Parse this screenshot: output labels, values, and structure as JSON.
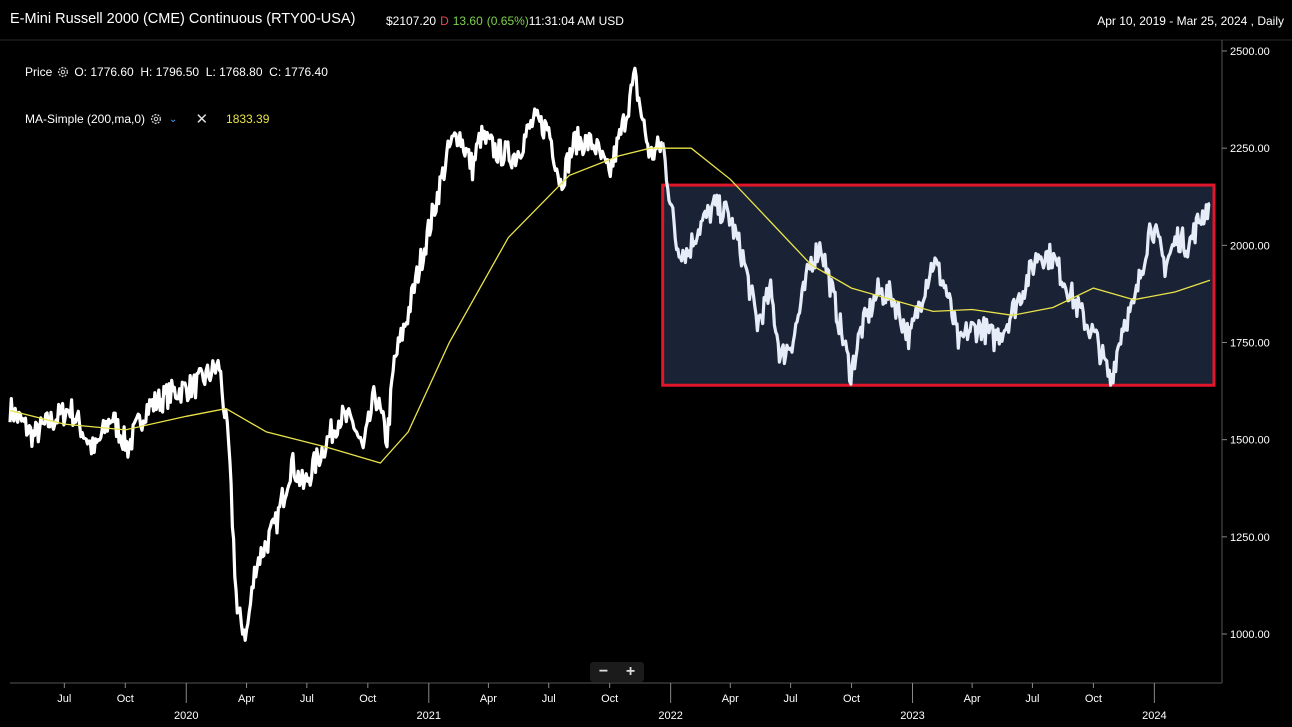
{
  "header": {
    "title": "E-Mini Russell 2000 (CME) Continuous (RTY00-USA)",
    "last": "$2107.20",
    "flag": "D",
    "change": "13.60",
    "change_pct": "(0.65%)",
    "time": "11:31:04 AM USD",
    "range": "Apr 10, 2019 - Mar 25, 2024 , Daily"
  },
  "legend": {
    "price_label": "Price",
    "ohlc": "O: 1776.60  H: 1796.50  L: 1768.80  C: 1776.40",
    "ma_label": "MA-Simple (200,ma,0)",
    "ma_value": "1833.39"
  },
  "zoom": {
    "minus": "−",
    "plus": "+"
  },
  "colors": {
    "price": "#ffffff",
    "price_highlight": "#e6ecf8",
    "ma": "#e9e34a",
    "box_border": "#e0162b",
    "box_fill": "#1a2335"
  },
  "chart_data": {
    "type": "line",
    "y_ticks": [
      "2500.00",
      "2250.00",
      "2000.00",
      "1750.00",
      "1500.00",
      "1250.00",
      "1000.00"
    ],
    "ylim": [
      930,
      2520
    ],
    "x_month_ticks": [
      "Jul",
      "Oct",
      "Apr",
      "Jul",
      "Oct",
      "Apr",
      "Jul",
      "Oct",
      "Apr",
      "Jul",
      "Oct",
      "Apr",
      "Jul",
      "Oct"
    ],
    "x_year_ticks": [
      "2020",
      "2021",
      "2022",
      "2023",
      "2024"
    ],
    "series": [
      {
        "role": "price",
        "x": [
          "2019-04-10",
          "2019-05-15",
          "2019-06-05",
          "2019-07-10",
          "2019-08-15",
          "2019-09-10",
          "2019-10-05",
          "2019-11-01",
          "2019-12-10",
          "2020-01-15",
          "2020-02-20",
          "2020-03-05",
          "2020-03-18",
          "2020-04-01",
          "2020-04-15",
          "2020-05-15",
          "2020-06-08",
          "2020-06-26",
          "2020-07-20",
          "2020-08-20",
          "2020-09-10",
          "2020-09-24",
          "2020-10-12",
          "2020-10-30",
          "2020-11-10",
          "2020-11-30",
          "2020-12-20",
          "2021-01-10",
          "2021-02-01",
          "2021-02-15",
          "2021-03-08",
          "2021-03-20",
          "2021-04-15",
          "2021-05-12",
          "2021-06-08",
          "2021-07-01",
          "2021-07-19",
          "2021-08-10",
          "2021-09-08",
          "2021-09-30",
          "2021-10-20",
          "2021-11-08",
          "2021-11-20",
          "2021-12-01",
          "2021-12-20",
          "2022-01-10",
          "2022-01-27",
          "2022-02-10",
          "2022-03-08",
          "2022-03-29",
          "2022-04-20",
          "2022-05-12",
          "2022-06-01",
          "2022-06-16",
          "2022-07-05",
          "2022-08-01",
          "2022-08-16",
          "2022-09-10",
          "2022-09-30",
          "2022-10-15",
          "2022-11-10",
          "2022-12-01",
          "2022-12-28",
          "2023-01-20",
          "2023-02-02",
          "2023-02-20",
          "2023-03-13",
          "2023-03-25",
          "2023-04-15",
          "2023-05-04",
          "2023-05-20",
          "2023-06-15",
          "2023-07-10",
          "2023-07-31",
          "2023-08-18",
          "2023-09-10",
          "2023-10-05",
          "2023-10-27",
          "2023-11-15",
          "2023-12-01",
          "2023-12-27",
          "2024-01-17",
          "2024-02-05",
          "2024-02-22",
          "2024-03-10",
          "2024-03-25"
        ],
        "values": [
          1580,
          1510,
          1540,
          1580,
          1470,
          1560,
          1480,
          1580,
          1620,
          1640,
          1690,
          1480,
          1050,
          1000,
          1180,
          1280,
          1440,
          1380,
          1460,
          1560,
          1540,
          1470,
          1620,
          1500,
          1700,
          1820,
          1960,
          2100,
          2250,
          2290,
          2200,
          2280,
          2240,
          2230,
          2320,
          2300,
          2160,
          2270,
          2260,
          2180,
          2300,
          2430,
          2320,
          2230,
          2260,
          2000,
          1980,
          2040,
          2100,
          2080,
          1970,
          1800,
          1880,
          1710,
          1760,
          1960,
          2000,
          1820,
          1670,
          1780,
          1880,
          1870,
          1760,
          1900,
          1960,
          1890,
          1740,
          1780,
          1790,
          1760,
          1790,
          1880,
          1980,
          1970,
          1910,
          1830,
          1760,
          1650,
          1800,
          1840,
          2060,
          1950,
          2020,
          2000,
          2070,
          2107
        ]
      },
      {
        "role": "ma",
        "x": [
          "2019-04-10",
          "2019-07-01",
          "2019-10-01",
          "2020-01-01",
          "2020-03-01",
          "2020-05-01",
          "2020-08-01",
          "2020-10-20",
          "2020-12-01",
          "2021-02-01",
          "2021-05-01",
          "2021-08-01",
          "2021-10-15",
          "2021-12-01",
          "2022-02-01",
          "2022-04-01",
          "2022-06-01",
          "2022-08-01",
          "2022-10-01",
          "2022-12-01",
          "2023-02-01",
          "2023-04-01",
          "2023-06-01",
          "2023-08-01",
          "2023-10-01",
          "2023-12-01",
          "2024-02-01",
          "2024-03-25"
        ],
        "values": [
          1575,
          1540,
          1525,
          1560,
          1580,
          1520,
          1480,
          1440,
          1520,
          1750,
          2020,
          2180,
          2230,
          2250,
          2250,
          2170,
          2060,
          1950,
          1890,
          1860,
          1830,
          1835,
          1820,
          1840,
          1890,
          1860,
          1880,
          1910
        ]
      }
    ],
    "highlight_box": {
      "x": [
        "2021-12-20",
        "2024-03-31"
      ],
      "y": [
        1640,
        2155
      ]
    }
  }
}
